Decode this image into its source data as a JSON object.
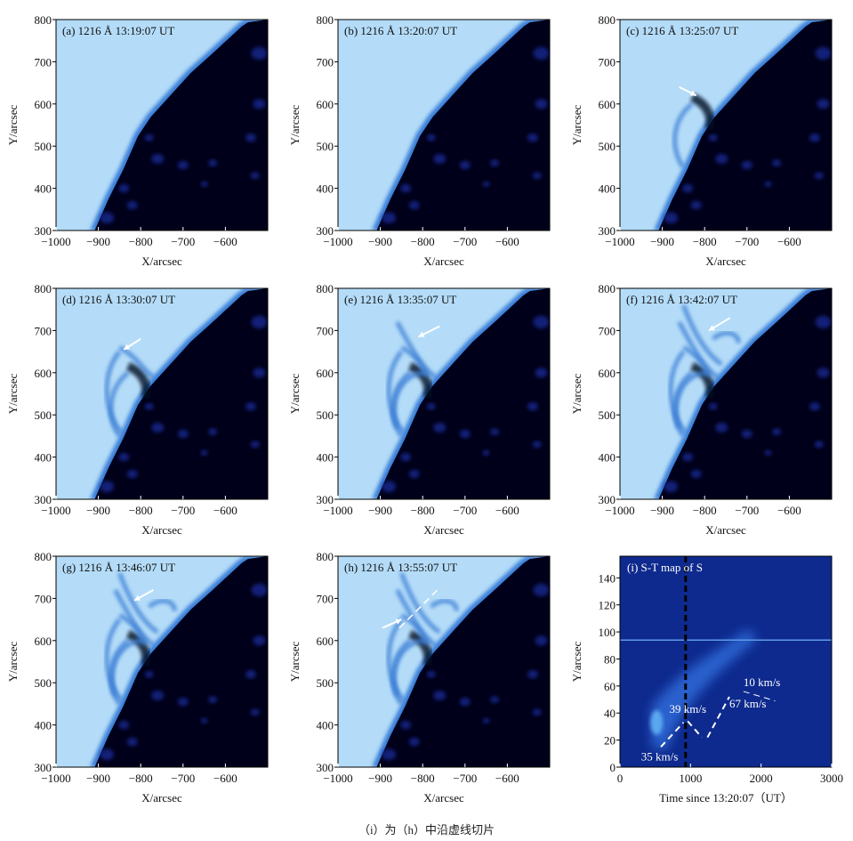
{
  "panels": [
    {
      "label": "(a)  1216 Å 13:19:07 UT",
      "stage": 0
    },
    {
      "label": "(b)  1216 Å 13:20:07 UT",
      "stage": 0
    },
    {
      "label": "(c)  1216 Å 13:25:07 UT",
      "stage": 1
    },
    {
      "label": "(d)  1216 Å 13:30:07 UT",
      "stage": 2
    },
    {
      "label": "(e)  1216 Å 13:35:07 UT",
      "stage": 3
    },
    {
      "label": "(f)  1216 Å 13:42:07 UT",
      "stage": 4
    },
    {
      "label": "(g)  1216 Å 13:46:07 UT",
      "stage": 4
    },
    {
      "label": "(h)  1216 Å 13:55:07 UT",
      "stage": 5
    }
  ],
  "image_axes": {
    "xlabel": "X/arcsec",
    "ylabel": "Y/arcsec",
    "xlim": [
      -1000,
      -500
    ],
    "ylim": [
      300,
      800
    ],
    "xticks": [
      -1000,
      -900,
      -800,
      -700,
      -600
    ],
    "yticks": [
      300,
      400,
      500,
      600,
      700,
      800
    ],
    "xtick_labels": [
      "−1000",
      "−900",
      "−800",
      "−700",
      "−600"
    ]
  },
  "chart_data": {
    "type": "heatmap",
    "title": "(i) S-T map of S",
    "xlabel": "Time since 13:20:07（UT）",
    "ylabel": "Y/arcsec",
    "xlim": [
      0,
      3000
    ],
    "ylim": [
      0,
      156
    ],
    "xticks": [
      0,
      1000,
      2000,
      3000
    ],
    "yticks": [
      0,
      20,
      40,
      60,
      80,
      100,
      120,
      140
    ],
    "vertical_dashed_line_x": 930,
    "horizontal_line_y": 94,
    "speed_fits": [
      {
        "label": "35 km/s",
        "x": [
          580,
          900
        ],
        "y": [
          15,
          33
        ]
      },
      {
        "label": "39 km/s",
        "x": [
          960,
          1160
        ],
        "y": [
          34,
          22
        ]
      },
      {
        "label": "67 km/s",
        "x": [
          1240,
          1550
        ],
        "y": [
          22,
          52
        ]
      },
      {
        "label": "10 km/s",
        "x": [
          1750,
          2200
        ],
        "y": [
          56,
          49
        ]
      }
    ]
  },
  "caption": "（i）为（h）中沿虚线切片",
  "colors": {
    "disk": "#b4dcf8",
    "space": "#00001a",
    "map_bg": "#0e2a8e",
    "bright": "#5aa8f0"
  }
}
